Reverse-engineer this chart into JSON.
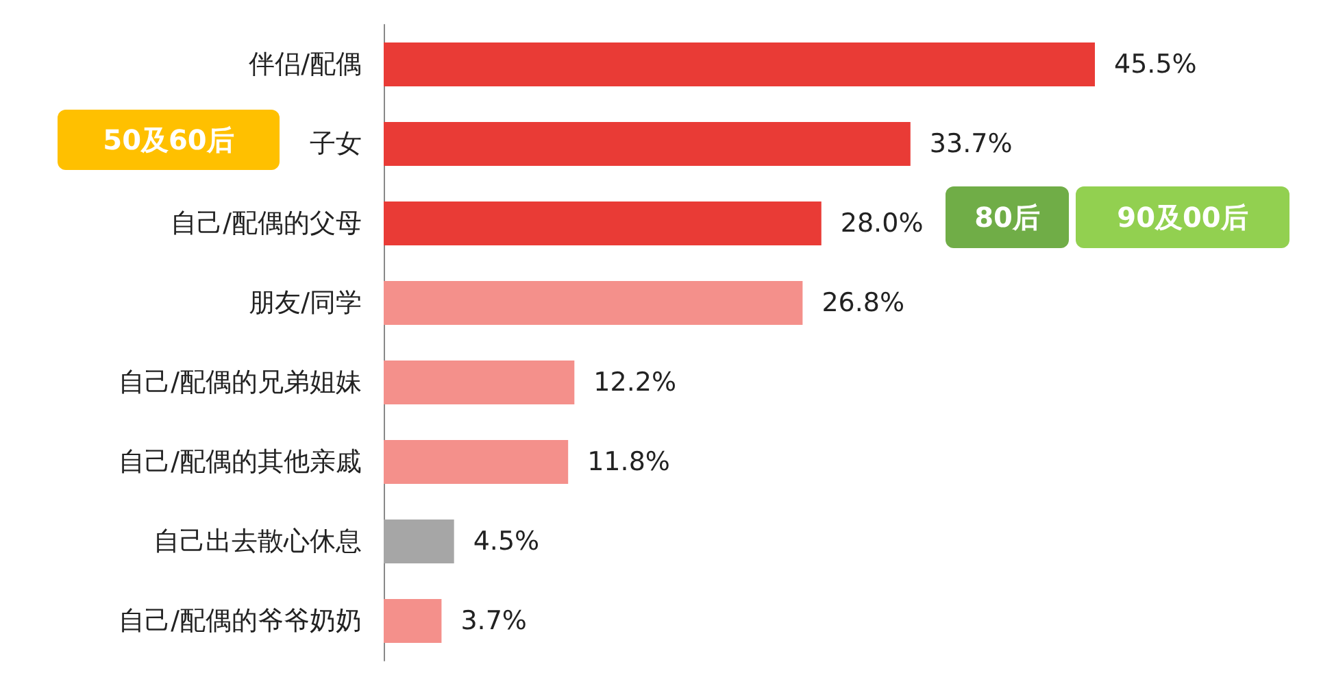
{
  "chart_data": {
    "type": "bar",
    "orientation": "horizontal",
    "categories": [
      "伴侣/配偶",
      "子女",
      "自己/配偶的父母",
      "朋友/同学",
      "自己/配偶的兄弟姐妹",
      "自己/配偶的其他亲戚",
      "自己出去散心休息",
      "自己/配偶的爷爷奶奶"
    ],
    "values": [
      45.5,
      33.7,
      28.0,
      26.8,
      12.2,
      11.8,
      4.5,
      3.7
    ],
    "colors": [
      "#e93b36",
      "#e93b36",
      "#e93b36",
      "#f4908b",
      "#f4908b",
      "#f4908b",
      "#a6a6a6",
      "#f4908b"
    ],
    "value_labels": [
      "45.5%",
      "33.7%",
      "28.0%",
      "26.8%",
      "12.2%",
      "11.8%",
      "4.5%",
      "3.7%"
    ],
    "annotations": [
      "50及60后",
      "80后",
      "90及00后"
    ]
  }
}
